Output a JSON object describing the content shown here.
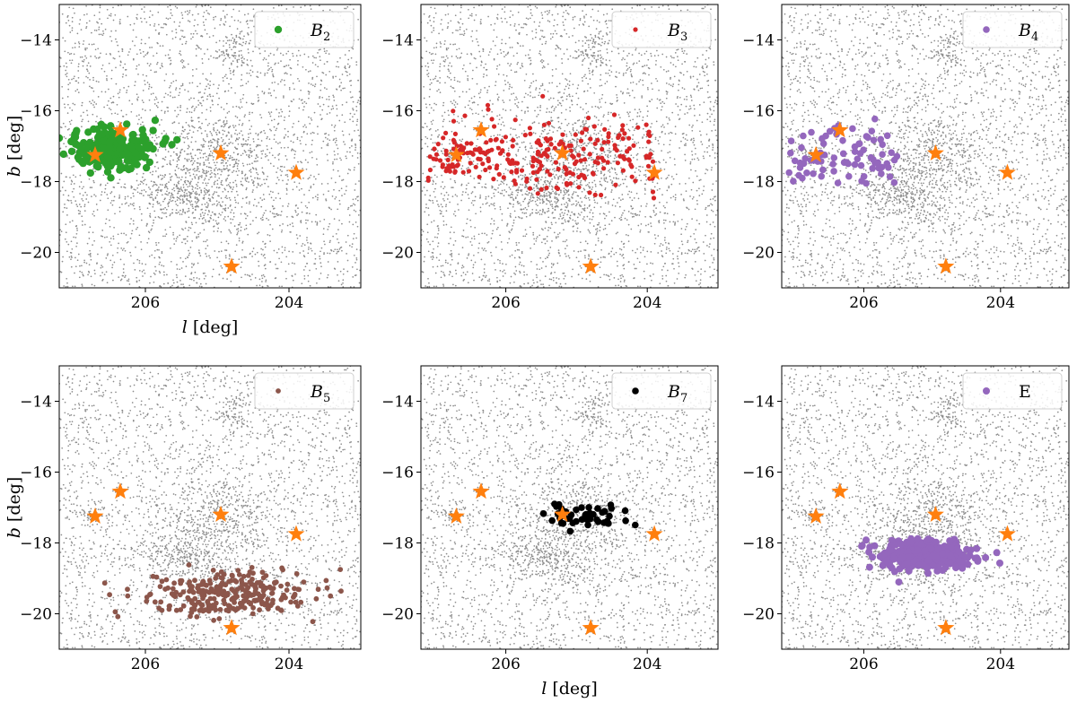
{
  "figure": {
    "shared_xlabel": "l [deg]",
    "shared_ylabel": "b [deg]"
  },
  "colors": {
    "background_stars": "#8c8c8c",
    "star_marker": "#ff7f0e",
    "B2": "#2ca02c",
    "B3": "#d62728",
    "B4": "#9467bd",
    "B5": "#8c564b",
    "B7": "#000000",
    "E": "#9467bd"
  },
  "chart_data": [
    {
      "type": "scatter",
      "legend": {
        "label": "B",
        "sub": "2",
        "color": "#2ca02c",
        "location": "top-right"
      },
      "xlim": [
        207.2,
        203.0
      ],
      "ylim": [
        -21.0,
        -13.0
      ],
      "xticks": [
        206,
        204
      ],
      "yticks": [
        -14,
        -16,
        -18,
        -20
      ],
      "xlabel": "l [deg]",
      "ylabel": "b [deg]",
      "cluster": {
        "center": [
          206.45,
          -17.1
        ],
        "spread": [
          0.55,
          0.45
        ],
        "count": 230,
        "shape": "blob",
        "marker_size": 4.2
      },
      "star_markers": [
        [
          206.35,
          -16.55
        ],
        [
          206.7,
          -17.25
        ],
        [
          204.95,
          -17.2
        ],
        [
          203.9,
          -17.75
        ],
        [
          204.8,
          -20.4
        ]
      ]
    },
    {
      "type": "scatter",
      "legend": {
        "label": "B",
        "sub": "3",
        "color": "#d62728",
        "location": "top-right"
      },
      "xlim": [
        207.2,
        203.0
      ],
      "ylim": [
        -21.0,
        -13.0
      ],
      "xticks": [
        206,
        204
      ],
      "yticks": [
        -14,
        -16,
        -18,
        -20
      ],
      "xlabel": "",
      "ylabel": "",
      "cluster": {
        "center": [
          205.5,
          -17.25
        ],
        "spread": [
          1.6,
          0.5
        ],
        "count": 260,
        "shape": "band",
        "marker_size": 2.6
      },
      "star_markers": [
        [
          206.35,
          -16.55
        ],
        [
          206.7,
          -17.25
        ],
        [
          205.2,
          -17.2
        ],
        [
          203.9,
          -17.75
        ],
        [
          204.8,
          -20.4
        ]
      ]
    },
    {
      "type": "scatter",
      "legend": {
        "label": "B",
        "sub": "4",
        "color": "#9467bd",
        "location": "top-right"
      },
      "xlim": [
        207.2,
        203.0
      ],
      "ylim": [
        -21.0,
        -13.0
      ],
      "xticks": [
        206,
        204
      ],
      "yticks": [
        -14,
        -16,
        -18,
        -20
      ],
      "xlabel": "",
      "ylabel": "",
      "cluster": {
        "center": [
          206.3,
          -17.3
        ],
        "spread": [
          0.8,
          0.4
        ],
        "count": 80,
        "shape": "band",
        "marker_size": 3.8
      },
      "star_markers": [
        [
          206.35,
          -16.55
        ],
        [
          206.7,
          -17.25
        ],
        [
          204.95,
          -17.2
        ],
        [
          203.9,
          -17.75
        ],
        [
          204.8,
          -20.4
        ]
      ]
    },
    {
      "type": "scatter",
      "legend": {
        "label": "B",
        "sub": "5",
        "color": "#8c564b",
        "location": "top-right"
      },
      "xlim": [
        207.2,
        203.0
      ],
      "ylim": [
        -21.0,
        -13.0
      ],
      "xticks": [
        206,
        204
      ],
      "yticks": [
        -14,
        -16,
        -18,
        -20
      ],
      "xlabel": "",
      "ylabel": "b [deg]",
      "cluster": {
        "center": [
          204.85,
          -19.45
        ],
        "spread": [
          1.0,
          0.55
        ],
        "count": 280,
        "shape": "blob",
        "marker_size": 2.9
      },
      "star_markers": [
        [
          206.35,
          -16.55
        ],
        [
          206.7,
          -17.25
        ],
        [
          204.95,
          -17.2
        ],
        [
          203.9,
          -17.75
        ],
        [
          204.8,
          -20.4
        ]
      ]
    },
    {
      "type": "scatter",
      "legend": {
        "label": "B",
        "sub": "7",
        "color": "#000000",
        "location": "top-right"
      },
      "xlim": [
        207.2,
        203.0
      ],
      "ylim": [
        -21.0,
        -13.0
      ],
      "xticks": [
        206,
        204
      ],
      "yticks": [
        -14,
        -16,
        -18,
        -20
      ],
      "xlabel": "l [deg]",
      "ylabel": "",
      "cluster": {
        "center": [
          204.85,
          -17.25
        ],
        "spread": [
          0.45,
          0.3
        ],
        "count": 45,
        "shape": "blob",
        "marker_size": 3.8
      },
      "star_markers": [
        [
          206.35,
          -16.55
        ],
        [
          206.7,
          -17.25
        ],
        [
          205.2,
          -17.2
        ],
        [
          203.9,
          -17.75
        ],
        [
          204.8,
          -20.4
        ]
      ]
    },
    {
      "type": "scatter",
      "legend": {
        "label": "E",
        "sub": "",
        "color": "#9467bd",
        "location": "top-right"
      },
      "xlim": [
        207.2,
        203.0
      ],
      "ylim": [
        -21.0,
        -13.0
      ],
      "xticks": [
        206,
        204
      ],
      "yticks": [
        -14,
        -16,
        -18,
        -20
      ],
      "xlabel": "",
      "ylabel": "",
      "cluster": {
        "center": [
          205.1,
          -18.35
        ],
        "spread": [
          0.6,
          0.35
        ],
        "count": 300,
        "shape": "blob",
        "marker_size": 4.0
      },
      "star_markers": [
        [
          206.35,
          -16.55
        ],
        [
          206.7,
          -17.25
        ],
        [
          204.95,
          -17.2
        ],
        [
          203.9,
          -17.75
        ],
        [
          204.8,
          -20.4
        ]
      ]
    }
  ]
}
